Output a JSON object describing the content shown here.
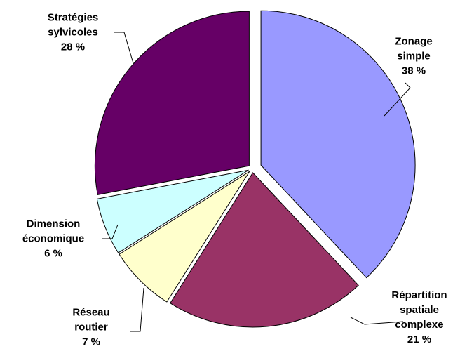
{
  "chart_data": {
    "type": "pie",
    "categories": [
      "Zonage simple",
      "Répartition spatiale complexe",
      "Réseau routier",
      "Dimension économique",
      "Stratégies sylvicoles"
    ],
    "values": [
      38,
      21,
      7,
      6,
      28
    ],
    "value_labels": [
      "38 %",
      "21 %",
      "7 %",
      "6 %",
      "28 %"
    ],
    "colors": [
      "#9999ff",
      "#993366",
      "#ffffcc",
      "#ccffff",
      "#660066"
    ]
  }
}
